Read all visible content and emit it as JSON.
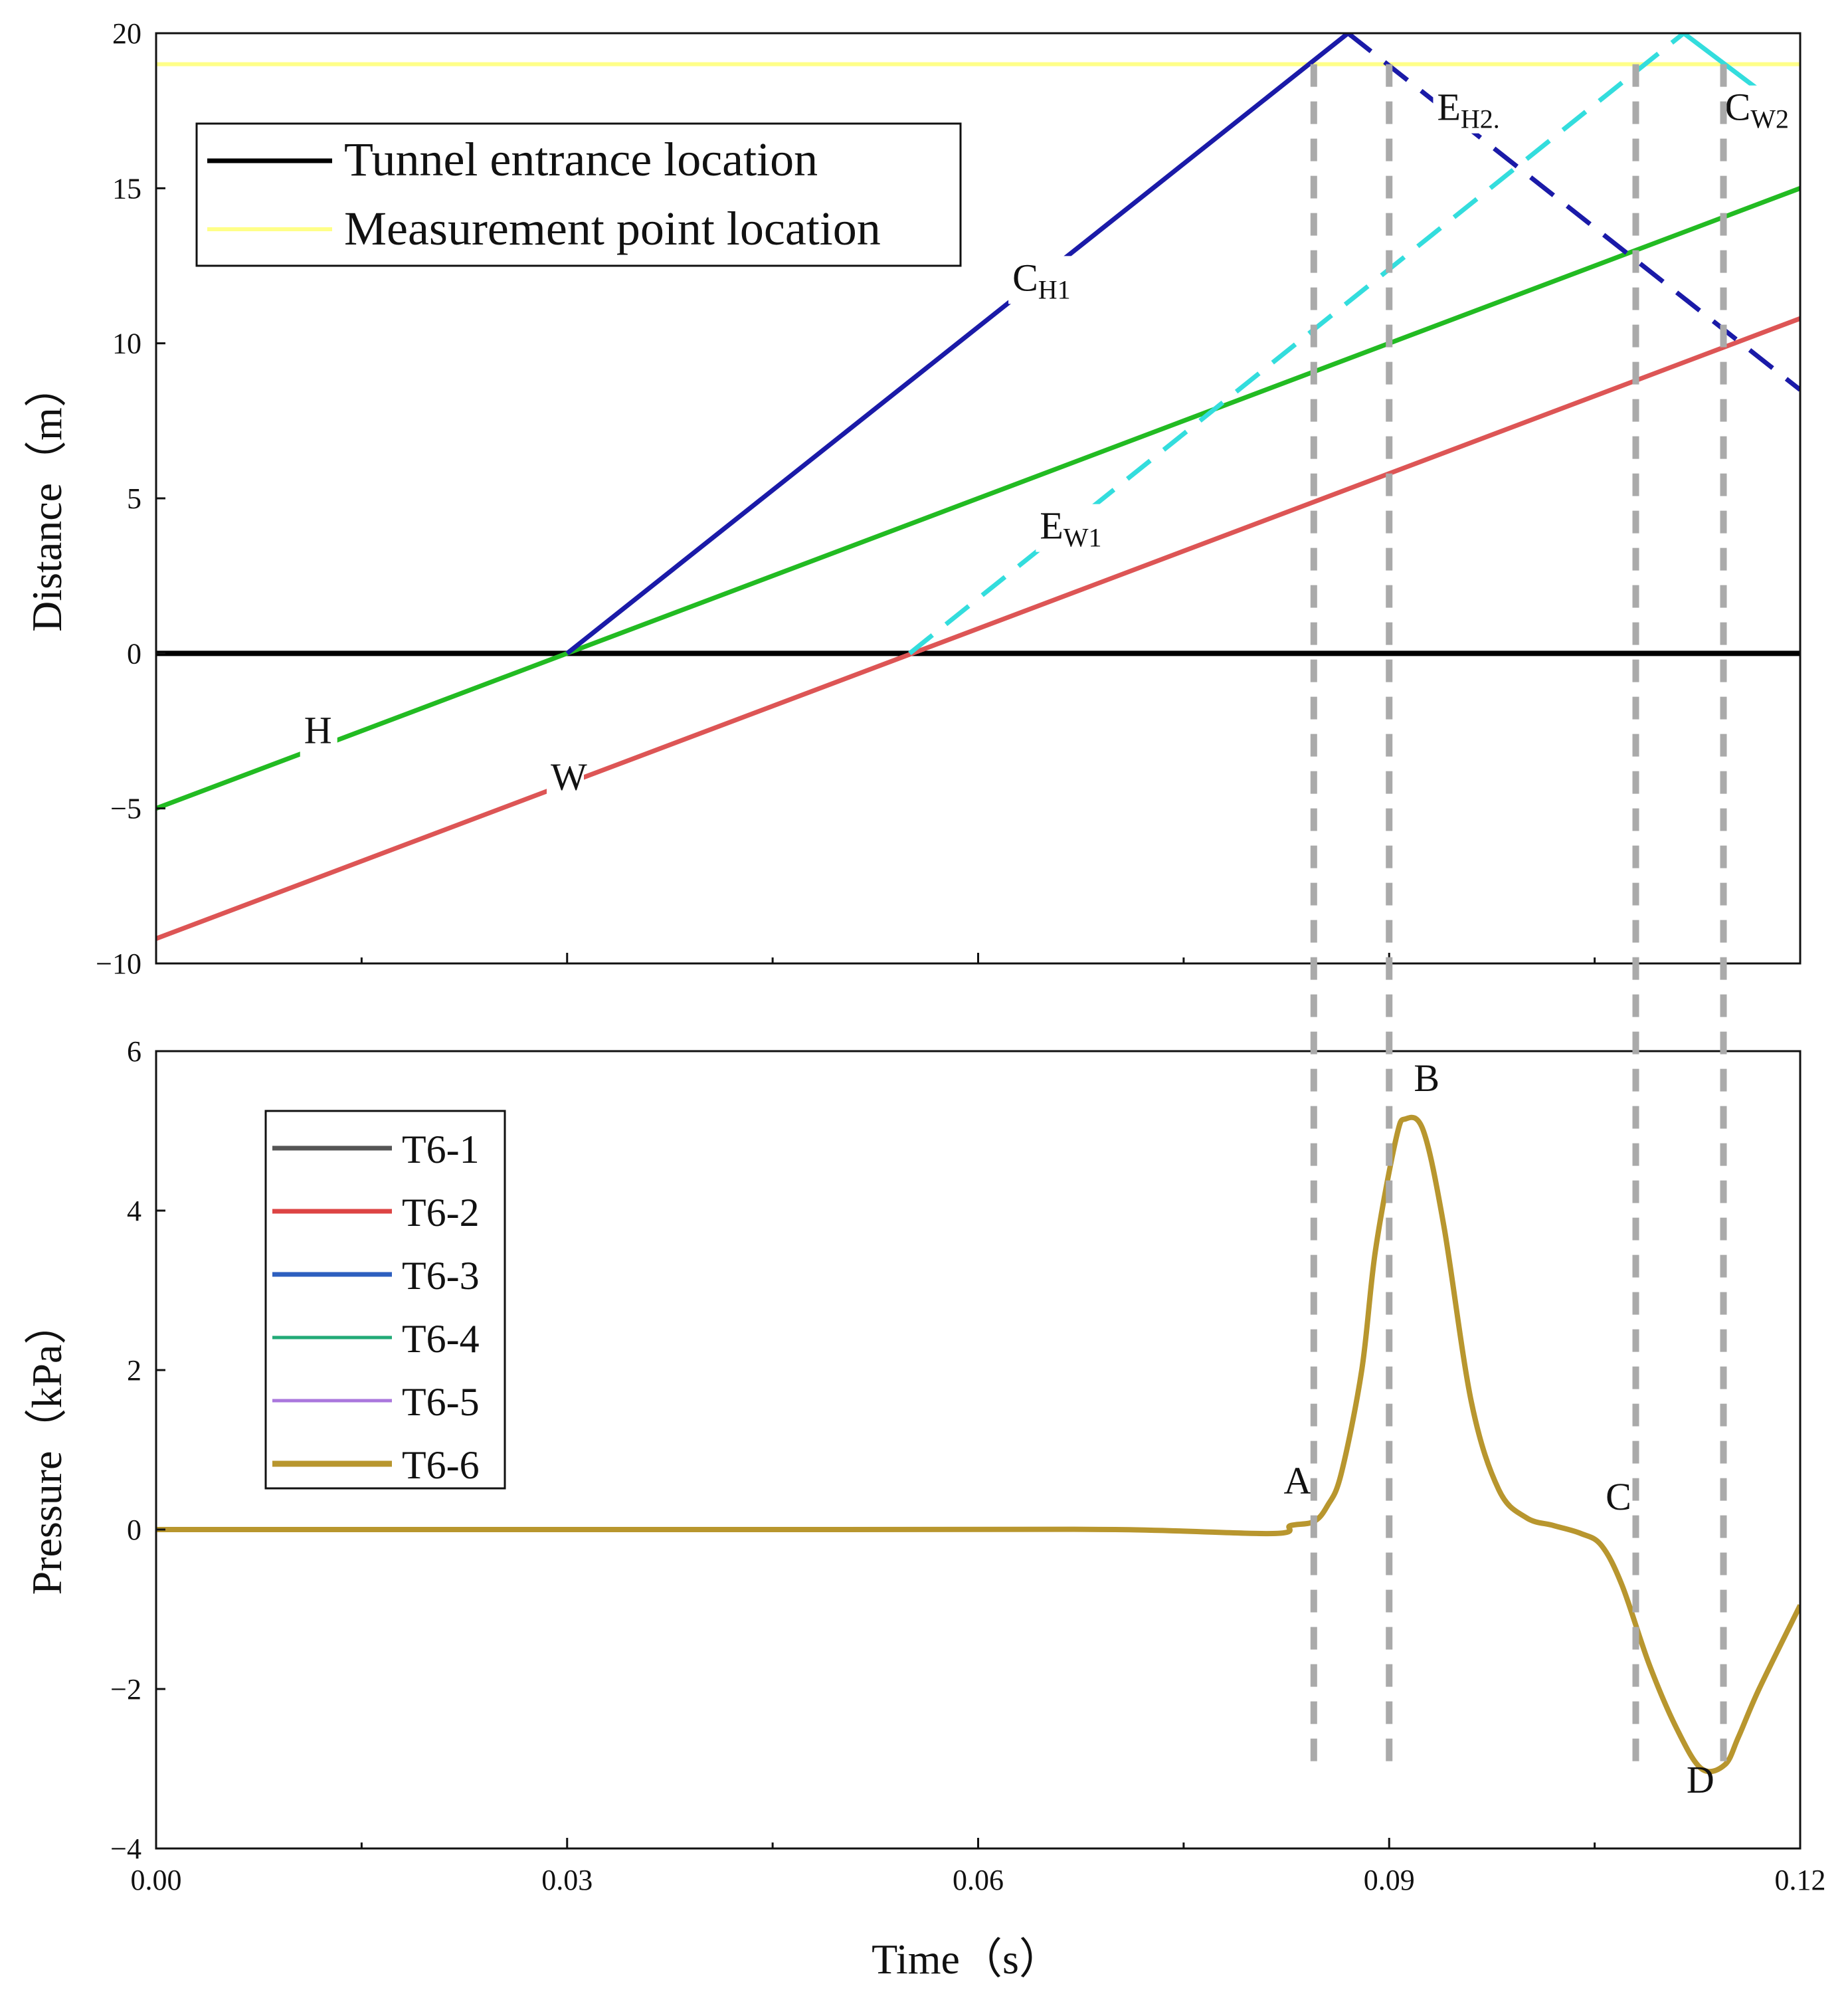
{
  "chart_data": [
    {
      "type": "line",
      "title": "",
      "xlabel": "Time（s）",
      "ylabel": "Distance（m）",
      "xlim": [
        0,
        0.12
      ],
      "ylim": [
        -10,
        20
      ],
      "yticks": [
        -10,
        -5,
        0,
        5,
        10,
        15,
        20
      ],
      "ytick_labels": [
        "−10",
        "−5",
        "0",
        "5",
        "10",
        "15",
        "20"
      ],
      "legend": [
        {
          "name": "Tunnel entrance location",
          "color": "#000000"
        },
        {
          "name": "Measurement point location",
          "color": "#ffff88"
        }
      ],
      "reference_lines": {
        "tunnel_entrance": 0,
        "measurement_point": 19
      },
      "series": [
        {
          "name": "H",
          "color": "#22bb22",
          "style": "solid",
          "x": [
            0,
            0.12
          ],
          "y": [
            -5,
            15
          ]
        },
        {
          "name": "W",
          "color": "#dd5555",
          "style": "solid",
          "x": [
            0,
            0.12
          ],
          "y": [
            -9.2,
            10.8
          ]
        },
        {
          "name": "C_H1",
          "color": "#1a1aa8",
          "style": "solid",
          "x": [
            0.03,
            0.087
          ],
          "y": [
            0,
            20
          ]
        },
        {
          "name": "E_H2",
          "color": "#1a1aa8",
          "style": "dashed",
          "x": [
            0.087,
            0.12
          ],
          "y": [
            20,
            8.5
          ]
        },
        {
          "name": "E_W1",
          "color": "#33dddd",
          "style": "dashed",
          "x": [
            0.055,
            0.1115
          ],
          "y": [
            0,
            20
          ]
        },
        {
          "name": "C_W2",
          "color": "#33dddd",
          "style": "solid",
          "x": [
            0.1115,
            0.1175
          ],
          "y": [
            20,
            18
          ]
        }
      ],
      "annotations": [
        {
          "text": "C",
          "sub": "H1",
          "x": 0.0625,
          "y": 11.7
        },
        {
          "text": "E",
          "sub": "H2.",
          "x": 0.0935,
          "y": 17.2
        },
        {
          "text": "C",
          "sub": "W2",
          "x": 0.1145,
          "y": 17.2
        },
        {
          "text": "E",
          "sub": "W1",
          "x": 0.0645,
          "y": 3.7
        },
        {
          "text": "H",
          "sub": "",
          "x": 0.0108,
          "y": -2.9
        },
        {
          "text": "W",
          "sub": "",
          "x": 0.0288,
          "y": -4.4
        }
      ]
    },
    {
      "type": "line",
      "title": "",
      "xlabel": "Time（s）",
      "ylabel": "Pressure（kPa）",
      "xlim": [
        0,
        0.12
      ],
      "ylim": [
        -4,
        6
      ],
      "xticks": [
        0,
        0.03,
        0.06,
        0.09,
        0.12
      ],
      "xtick_labels": [
        "0.00",
        "0.03",
        "0.06",
        "0.09",
        "0.12"
      ],
      "yticks": [
        -4,
        -2,
        0,
        2,
        4,
        6
      ],
      "ytick_labels": [
        "−4",
        "−2",
        "0",
        "2",
        "4",
        "6"
      ],
      "x": [
        0,
        0.05,
        0.07,
        0.0815,
        0.0828,
        0.0845,
        0.0855,
        0.0865,
        0.088,
        0.089,
        0.0905,
        0.0912,
        0.0925,
        0.094,
        0.096,
        0.098,
        0.1,
        0.102,
        0.104,
        0.1055,
        0.107,
        0.109,
        0.111,
        0.1128,
        0.1145,
        0.1155,
        0.117,
        0.12
      ],
      "series": [
        {
          "name": "T6-1",
          "color": "#555555",
          "width": 2,
          "y": null
        },
        {
          "name": "T6-2",
          "color": "#dd4444",
          "width": 2,
          "y": null
        },
        {
          "name": "T6-3",
          "color": "#2d5fbf",
          "width": 2,
          "y": null
        },
        {
          "name": "T6-4",
          "color": "#22aa77",
          "width": 1,
          "y": null
        },
        {
          "name": "T6-5",
          "color": "#aa77dd",
          "width": 1,
          "y": null
        },
        {
          "name": "T6-6",
          "color": "#b8962e",
          "width": 3,
          "y": [
            0,
            0,
            0,
            -0.05,
            0.05,
            0.1,
            0.3,
            0.7,
            2.0,
            3.5,
            4.9,
            5.15,
            5.0,
            3.8,
            1.6,
            0.5,
            0.15,
            0.05,
            -0.05,
            -0.2,
            -0.7,
            -1.7,
            -2.5,
            -3.0,
            -2.95,
            -2.6,
            -2.0,
            -0.95
          ]
        }
      ],
      "annotations": [
        {
          "text": "A",
          "x": 0.0823,
          "y": 0.45
        },
        {
          "text": "B",
          "x": 0.0918,
          "y": 5.5
        },
        {
          "text": "C",
          "x": 0.1058,
          "y": 0.25
        },
        {
          "text": "D",
          "x": 0.1117,
          "y": -3.3
        }
      ],
      "vertical_guides": [
        0.0845,
        0.09,
        0.108,
        0.1144
      ]
    }
  ]
}
